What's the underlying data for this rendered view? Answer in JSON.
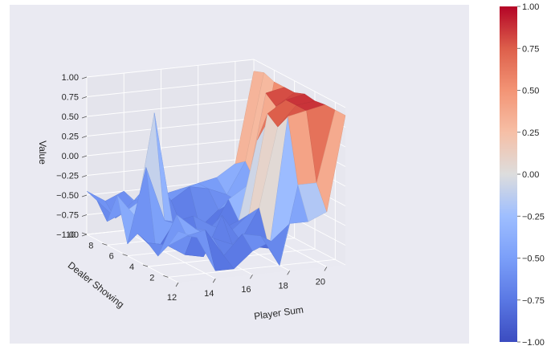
{
  "chart_data": {
    "type": "surface",
    "xlabel": "Player Sum",
    "ylabel": "Dealer Showing",
    "zlabel": "Value",
    "xlim": [
      12,
      21
    ],
    "ylim": [
      1,
      10
    ],
    "zlim": [
      -1.0,
      1.0
    ],
    "x_ticks": [
      "12",
      "14",
      "16",
      "18",
      "20"
    ],
    "y_ticks": [
      "2",
      "4",
      "6",
      "8",
      "10"
    ],
    "z_ticks": [
      "1.00",
      "0.75",
      "0.50",
      "0.25",
      "0.00",
      "−0.25",
      "−0.50",
      "−0.75",
      "−1.00"
    ],
    "colorbar": {
      "colormap": "coolwarm",
      "range": [
        -1.0,
        1.0
      ],
      "ticks": [
        "1.00",
        "0.75",
        "0.50",
        "0.25",
        "0.00",
        "−0.25",
        "−0.50",
        "−0.75",
        "−1.00"
      ],
      "low_color": "#3b4cc0",
      "mid_color": "#dddddd",
      "high_color": "#b40426"
    },
    "x": [
      12,
      13,
      14,
      15,
      16,
      17,
      18,
      19,
      20,
      21
    ],
    "y": [
      1,
      2,
      3,
      4,
      5,
      6,
      7,
      8,
      9,
      10
    ],
    "z": [
      [
        -0.35,
        -0.45,
        -0.9,
        -0.9,
        -0.7,
        -0.6,
        -0.4,
        -0.4,
        -0.3,
        0.9
      ],
      [
        -0.6,
        -0.5,
        -0.45,
        -0.8,
        -0.55,
        -0.6,
        -1.0,
        0.0,
        0.0,
        0.9
      ],
      [
        -0.8,
        -0.3,
        -0.5,
        -0.65,
        -0.75,
        -0.8,
        -0.85,
        0.8,
        0.85,
        0.9
      ],
      [
        -0.7,
        -0.75,
        -0.9,
        -0.95,
        -0.45,
        -0.8,
        -0.4,
        0.6,
        0.85,
        0.88
      ],
      [
        -0.65,
        -0.9,
        -0.55,
        -0.5,
        -0.65,
        -0.75,
        -0.55,
        0.7,
        0.85,
        0.9
      ],
      [
        -0.85,
        0.1,
        -0.6,
        -0.7,
        -0.75,
        -0.8,
        -0.7,
        0.3,
        0.7,
        0.85
      ],
      [
        -0.3,
        -0.6,
        0.7,
        -0.75,
        -0.85,
        -0.9,
        -0.5,
        -0.35,
        0.8,
        0.85
      ],
      [
        -0.7,
        -0.6,
        -0.45,
        -0.9,
        -0.85,
        -0.9,
        -0.7,
        -0.6,
        -0.4,
        0.85
      ],
      [
        -0.5,
        -0.75,
        -0.55,
        -0.3,
        -0.6,
        -0.45,
        -0.5,
        -0.6,
        -0.2,
        0.9
      ],
      [
        -0.45,
        -0.6,
        -0.5,
        -0.8,
        -0.6,
        -0.55,
        -0.5,
        -0.45,
        -0.3,
        0.85
      ]
    ],
    "grid": true,
    "background": "#eaeaf2"
  }
}
